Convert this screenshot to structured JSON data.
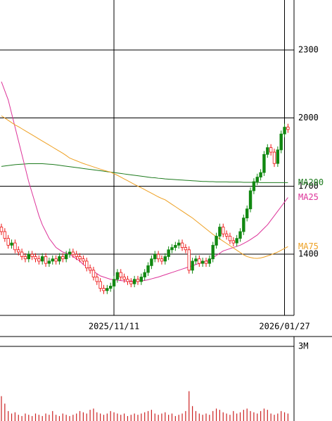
{
  "chart_data": [
    {
      "type": "candlestick",
      "categories": [
        null,
        null,
        null,
        null,
        null,
        null,
        null,
        null,
        null,
        null,
        null,
        null,
        null,
        null,
        null,
        null,
        null,
        null,
        null,
        null,
        null,
        null,
        null,
        null,
        null,
        null,
        null,
        null,
        null,
        null,
        null,
        null,
        null,
        "2025/11/11",
        null,
        null,
        null,
        null,
        null,
        null,
        null,
        null,
        null,
        null,
        null,
        null,
        null,
        null,
        null,
        null,
        null,
        null,
        null,
        null,
        null,
        null,
        null,
        null,
        null,
        null,
        null,
        null,
        null,
        null,
        null,
        null,
        null,
        null,
        null,
        null,
        null,
        null,
        null,
        null,
        null,
        null,
        null,
        null,
        null,
        null,
        null,
        null,
        null,
        "2026/01/27",
        null
      ],
      "open": [
        1520,
        1500,
        1470,
        1440,
        1450,
        1420,
        1410,
        1390,
        1380,
        1400,
        1390,
        1380,
        1370,
        1390,
        1360,
        1370,
        1380,
        1370,
        1390,
        1380,
        1400,
        1410,
        1400,
        1390,
        1380,
        1370,
        1340,
        1330,
        1300,
        1280,
        1250,
        1240,
        1250,
        1260,
        1290,
        1320,
        1300,
        1290,
        1280,
        1270,
        1290,
        1280,
        1300,
        1320,
        1350,
        1380,
        1400,
        1380,
        1370,
        1390,
        1420,
        1430,
        1440,
        1450,
        1430,
        1420,
        1330,
        1370,
        1380,
        1360,
        1370,
        1360,
        1380,
        1440,
        1480,
        1520,
        1490,
        1480,
        1460,
        1450,
        1470,
        1500,
        1560,
        1600,
        1680,
        1720,
        1740,
        1760,
        1840,
        1870,
        1850,
        1800,
        1860,
        1930,
        1960
      ],
      "high": [
        1535,
        1515,
        1485,
        1465,
        1465,
        1435,
        1425,
        1405,
        1415,
        1415,
        1405,
        1395,
        1405,
        1405,
        1385,
        1395,
        1395,
        1405,
        1405,
        1415,
        1425,
        1425,
        1415,
        1405,
        1395,
        1385,
        1355,
        1345,
        1315,
        1295,
        1265,
        1265,
        1275,
        1305,
        1335,
        1335,
        1315,
        1305,
        1295,
        1305,
        1305,
        1315,
        1335,
        1365,
        1395,
        1415,
        1415,
        1395,
        1405,
        1435,
        1445,
        1455,
        1465,
        1465,
        1445,
        1435,
        1385,
        1395,
        1395,
        1385,
        1385,
        1395,
        1455,
        1495,
        1535,
        1535,
        1505,
        1495,
        1475,
        1485,
        1515,
        1575,
        1615,
        1695,
        1735,
        1755,
        1775,
        1855,
        1885,
        1885,
        1865,
        1875,
        1945,
        1975,
        1975
      ],
      "low": [
        1485,
        1455,
        1425,
        1425,
        1405,
        1395,
        1375,
        1365,
        1365,
        1375,
        1365,
        1355,
        1355,
        1345,
        1345,
        1355,
        1355,
        1355,
        1365,
        1365,
        1385,
        1385,
        1375,
        1365,
        1355,
        1325,
        1315,
        1285,
        1265,
        1235,
        1225,
        1225,
        1235,
        1245,
        1275,
        1285,
        1275,
        1265,
        1255,
        1255,
        1265,
        1265,
        1285,
        1305,
        1335,
        1365,
        1365,
        1355,
        1355,
        1375,
        1405,
        1415,
        1425,
        1415,
        1405,
        1315,
        1315,
        1355,
        1345,
        1345,
        1345,
        1345,
        1365,
        1425,
        1465,
        1475,
        1465,
        1445,
        1435,
        1435,
        1455,
        1485,
        1545,
        1585,
        1665,
        1705,
        1725,
        1745,
        1825,
        1835,
        1785,
        1785,
        1845,
        1915,
        1935
      ],
      "close": [
        1500,
        1470,
        1440,
        1450,
        1420,
        1410,
        1390,
        1380,
        1400,
        1390,
        1380,
        1370,
        1390,
        1360,
        1370,
        1380,
        1370,
        1390,
        1380,
        1400,
        1410,
        1400,
        1390,
        1380,
        1370,
        1340,
        1330,
        1300,
        1280,
        1250,
        1240,
        1250,
        1260,
        1290,
        1320,
        1300,
        1290,
        1280,
        1270,
        1290,
        1280,
        1300,
        1320,
        1350,
        1380,
        1400,
        1380,
        1370,
        1390,
        1420,
        1430,
        1440,
        1450,
        1430,
        1420,
        1330,
        1370,
        1380,
        1360,
        1370,
        1360,
        1380,
        1440,
        1480,
        1520,
        1490,
        1480,
        1460,
        1450,
        1470,
        1500,
        1560,
        1600,
        1680,
        1720,
        1740,
        1760,
        1840,
        1870,
        1850,
        1800,
        1860,
        1930,
        1960,
        1950
      ],
      "up_color": "#118811",
      "down_color": "#ee1111",
      "series": [
        {
          "name": "MA200",
          "color": "#1e7b1e",
          "values": [
            1787,
            1789,
            1791,
            1793,
            1795,
            1796,
            1797,
            1798,
            1799,
            1799,
            1799,
            1799,
            1799,
            1798,
            1797,
            1796,
            1794,
            1792,
            1790,
            1788,
            1786,
            1784,
            1782,
            1780,
            1778,
            1776,
            1774,
            1772,
            1770,
            1768,
            1766,
            1764,
            1762,
            1760,
            1758,
            1756,
            1754,
            1752,
            1750,
            1748,
            1746,
            1744,
            1742,
            1740,
            1738,
            1737,
            1735,
            1734,
            1732,
            1731,
            1730,
            1729,
            1728,
            1727,
            1726,
            1725,
            1724,
            1723,
            1722,
            1721,
            1721,
            1720,
            1720,
            1719,
            1719,
            1719,
            1719,
            1718,
            1718,
            1718,
            1718,
            1717,
            1717,
            1717,
            1717,
            1717,
            1716,
            1716,
            1716,
            1716,
            1716,
            1716,
            1716,
            1716,
            1716
          ]
        },
        {
          "name": "MA25",
          "color": "#dd3399",
          "values": [
            2160,
            2120,
            2080,
            2020,
            1960,
            1900,
            1840,
            1780,
            1720,
            1670,
            1620,
            1570,
            1530,
            1500,
            1470,
            1450,
            1430,
            1420,
            1410,
            1405,
            1400,
            1390,
            1380,
            1370,
            1355,
            1345,
            1335,
            1325,
            1315,
            1305,
            1300,
            1295,
            1290,
            1288,
            1286,
            1284,
            1283,
            1282,
            1282,
            1282,
            1282,
            1283,
            1285,
            1288,
            1292,
            1296,
            1300,
            1305,
            1310,
            1315,
            1320,
            1325,
            1330,
            1335,
            1340,
            1345,
            1350,
            1355,
            1360,
            1365,
            1370,
            1375,
            1385,
            1395,
            1405,
            1415,
            1420,
            1425,
            1430,
            1435,
            1440,
            1448,
            1456,
            1465,
            1475,
            1485,
            1500,
            1515,
            1530,
            1550,
            1570,
            1590,
            1610,
            1630,
            1650
          ]
        },
        {
          "name": "MA75",
          "color": "#eea022",
          "values": [
            2010,
            2000,
            1990,
            1980,
            1970,
            1962,
            1953,
            1944,
            1935,
            1926,
            1917,
            1908,
            1899,
            1890,
            1881,
            1872,
            1863,
            1854,
            1845,
            1835,
            1824,
            1818,
            1812,
            1806,
            1800,
            1795,
            1790,
            1785,
            1780,
            1775,
            1770,
            1766,
            1762,
            1755,
            1748,
            1740,
            1732,
            1724,
            1716,
            1708,
            1700,
            1693,
            1685,
            1677,
            1669,
            1661,
            1653,
            1646,
            1640,
            1630,
            1620,
            1610,
            1600,
            1590,
            1580,
            1570,
            1560,
            1548,
            1536,
            1524,
            1512,
            1500,
            1488,
            1478,
            1468,
            1458,
            1448,
            1438,
            1428,
            1418,
            1408,
            1398,
            1390,
            1386,
            1383,
            1382,
            1384,
            1388,
            1393,
            1398,
            1404,
            1410,
            1418,
            1426,
            1434
          ]
        }
      ],
      "ylim": [
        1131,
        2520
      ],
      "yticks": [
        1400,
        1700,
        2000,
        2300
      ],
      "grid": true
    },
    {
      "type": "bar",
      "values": [
        1000000,
        700000,
        400000,
        300000,
        350000,
        250000,
        200000,
        300000,
        250000,
        200000,
        300000,
        250000,
        200000,
        300000,
        250000,
        400000,
        250000,
        200000,
        300000,
        250000,
        200000,
        250000,
        300000,
        400000,
        350000,
        300000,
        450000,
        500000,
        350000,
        300000,
        250000,
        300000,
        400000,
        350000,
        300000,
        250000,
        300000,
        200000,
        250000,
        300000,
        250000,
        300000,
        350000,
        400000,
        450000,
        300000,
        250000,
        300000,
        350000,
        250000,
        300000,
        200000,
        250000,
        300000,
        400000,
        1200000,
        600000,
        400000,
        300000,
        250000,
        300000,
        250000,
        400000,
        500000,
        450000,
        350000,
        300000,
        250000,
        400000,
        300000,
        350000,
        450000,
        500000,
        400000,
        350000,
        300000,
        400000,
        500000,
        450000,
        300000,
        250000,
        300000,
        400000,
        350000,
        300000
      ],
      "color": "#cc2222",
      "ylim": [
        0,
        3400000
      ],
      "yticks": [
        {
          "value": 3000000,
          "label": "3M"
        }
      ],
      "grid": true
    }
  ]
}
